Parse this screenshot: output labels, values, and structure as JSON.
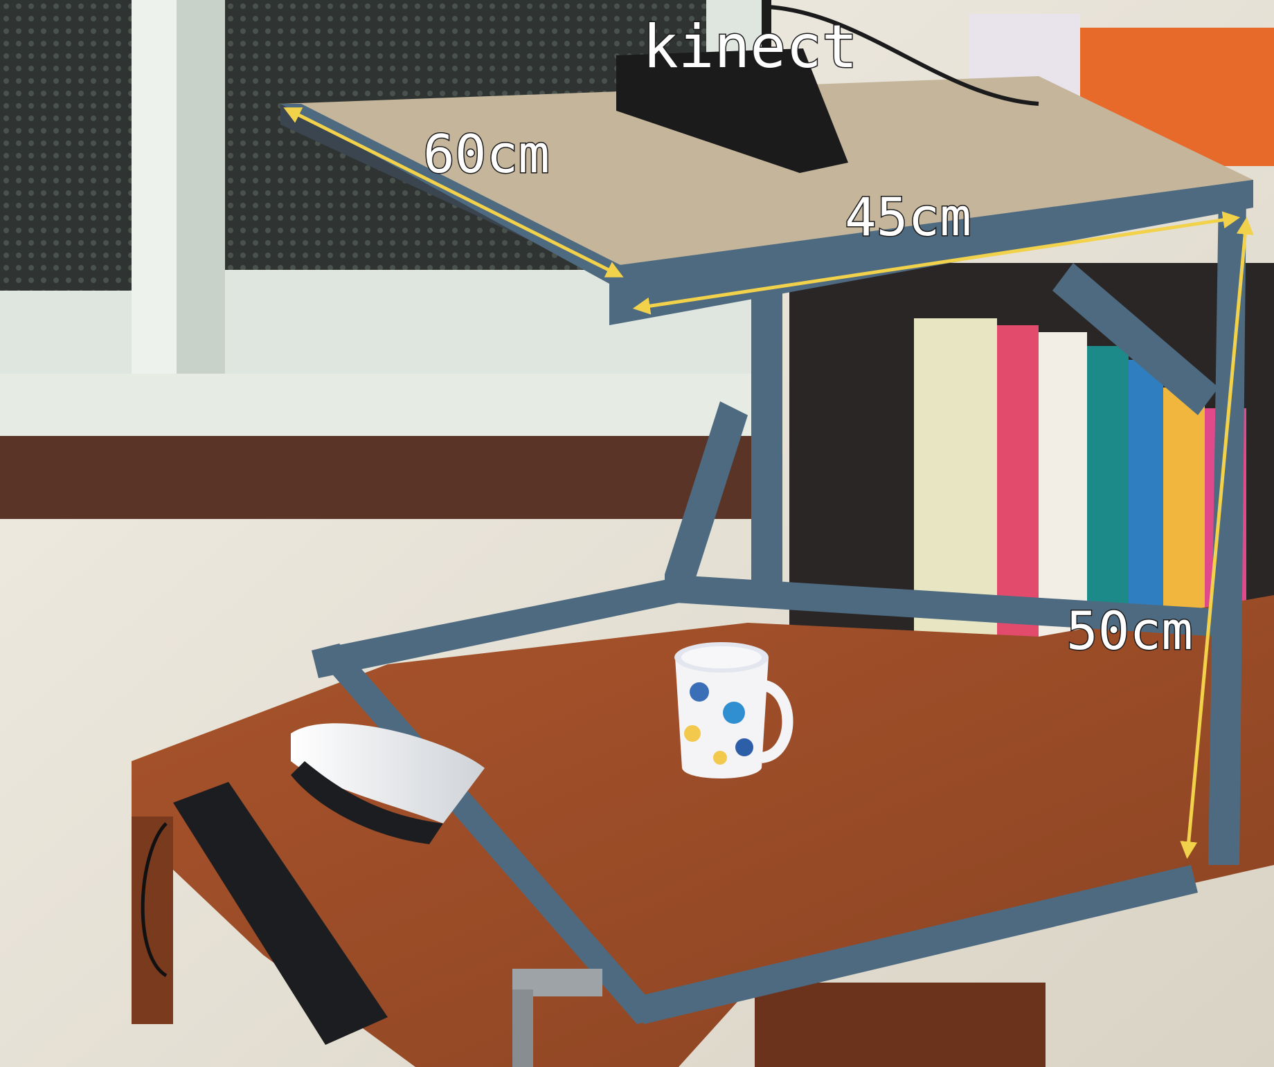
{
  "labels": {
    "kinect": "kinect",
    "width": "60cm",
    "depth": "45cm",
    "height": "50cm"
  },
  "colors": {
    "arrow": "#f2d24b",
    "frame": "#4e6a80",
    "board": "#c4b59b",
    "desk": "#9a4d28",
    "wall": "#ece8df"
  }
}
